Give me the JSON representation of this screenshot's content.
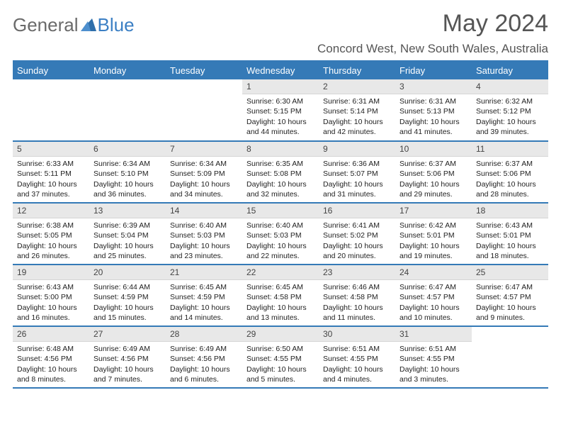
{
  "brand": {
    "part1": "General",
    "part2": "Blue"
  },
  "title": "May 2024",
  "location": "Concord West, New South Wales, Australia",
  "colors": {
    "header_bg": "#357ab7",
    "header_text": "#ffffff",
    "daynum_bg": "#e8e8e8",
    "text": "#222222",
    "title": "#555555",
    "logo_gray": "#6a6a6a",
    "logo_blue": "#3b7fc4"
  },
  "weekdays": [
    "Sunday",
    "Monday",
    "Tuesday",
    "Wednesday",
    "Thursday",
    "Friday",
    "Saturday"
  ],
  "weeks": [
    [
      {
        "n": "",
        "sr": "",
        "ss": "",
        "dl": ""
      },
      {
        "n": "",
        "sr": "",
        "ss": "",
        "dl": ""
      },
      {
        "n": "",
        "sr": "",
        "ss": "",
        "dl": ""
      },
      {
        "n": "1",
        "sr": "Sunrise: 6:30 AM",
        "ss": "Sunset: 5:15 PM",
        "dl": "Daylight: 10 hours and 44 minutes."
      },
      {
        "n": "2",
        "sr": "Sunrise: 6:31 AM",
        "ss": "Sunset: 5:14 PM",
        "dl": "Daylight: 10 hours and 42 minutes."
      },
      {
        "n": "3",
        "sr": "Sunrise: 6:31 AM",
        "ss": "Sunset: 5:13 PM",
        "dl": "Daylight: 10 hours and 41 minutes."
      },
      {
        "n": "4",
        "sr": "Sunrise: 6:32 AM",
        "ss": "Sunset: 5:12 PM",
        "dl": "Daylight: 10 hours and 39 minutes."
      }
    ],
    [
      {
        "n": "5",
        "sr": "Sunrise: 6:33 AM",
        "ss": "Sunset: 5:11 PM",
        "dl": "Daylight: 10 hours and 37 minutes."
      },
      {
        "n": "6",
        "sr": "Sunrise: 6:34 AM",
        "ss": "Sunset: 5:10 PM",
        "dl": "Daylight: 10 hours and 36 minutes."
      },
      {
        "n": "7",
        "sr": "Sunrise: 6:34 AM",
        "ss": "Sunset: 5:09 PM",
        "dl": "Daylight: 10 hours and 34 minutes."
      },
      {
        "n": "8",
        "sr": "Sunrise: 6:35 AM",
        "ss": "Sunset: 5:08 PM",
        "dl": "Daylight: 10 hours and 32 minutes."
      },
      {
        "n": "9",
        "sr": "Sunrise: 6:36 AM",
        "ss": "Sunset: 5:07 PM",
        "dl": "Daylight: 10 hours and 31 minutes."
      },
      {
        "n": "10",
        "sr": "Sunrise: 6:37 AM",
        "ss": "Sunset: 5:06 PM",
        "dl": "Daylight: 10 hours and 29 minutes."
      },
      {
        "n": "11",
        "sr": "Sunrise: 6:37 AM",
        "ss": "Sunset: 5:06 PM",
        "dl": "Daylight: 10 hours and 28 minutes."
      }
    ],
    [
      {
        "n": "12",
        "sr": "Sunrise: 6:38 AM",
        "ss": "Sunset: 5:05 PM",
        "dl": "Daylight: 10 hours and 26 minutes."
      },
      {
        "n": "13",
        "sr": "Sunrise: 6:39 AM",
        "ss": "Sunset: 5:04 PM",
        "dl": "Daylight: 10 hours and 25 minutes."
      },
      {
        "n": "14",
        "sr": "Sunrise: 6:40 AM",
        "ss": "Sunset: 5:03 PM",
        "dl": "Daylight: 10 hours and 23 minutes."
      },
      {
        "n": "15",
        "sr": "Sunrise: 6:40 AM",
        "ss": "Sunset: 5:03 PM",
        "dl": "Daylight: 10 hours and 22 minutes."
      },
      {
        "n": "16",
        "sr": "Sunrise: 6:41 AM",
        "ss": "Sunset: 5:02 PM",
        "dl": "Daylight: 10 hours and 20 minutes."
      },
      {
        "n": "17",
        "sr": "Sunrise: 6:42 AM",
        "ss": "Sunset: 5:01 PM",
        "dl": "Daylight: 10 hours and 19 minutes."
      },
      {
        "n": "18",
        "sr": "Sunrise: 6:43 AM",
        "ss": "Sunset: 5:01 PM",
        "dl": "Daylight: 10 hours and 18 minutes."
      }
    ],
    [
      {
        "n": "19",
        "sr": "Sunrise: 6:43 AM",
        "ss": "Sunset: 5:00 PM",
        "dl": "Daylight: 10 hours and 16 minutes."
      },
      {
        "n": "20",
        "sr": "Sunrise: 6:44 AM",
        "ss": "Sunset: 4:59 PM",
        "dl": "Daylight: 10 hours and 15 minutes."
      },
      {
        "n": "21",
        "sr": "Sunrise: 6:45 AM",
        "ss": "Sunset: 4:59 PM",
        "dl": "Daylight: 10 hours and 14 minutes."
      },
      {
        "n": "22",
        "sr": "Sunrise: 6:45 AM",
        "ss": "Sunset: 4:58 PM",
        "dl": "Daylight: 10 hours and 13 minutes."
      },
      {
        "n": "23",
        "sr": "Sunrise: 6:46 AM",
        "ss": "Sunset: 4:58 PM",
        "dl": "Daylight: 10 hours and 11 minutes."
      },
      {
        "n": "24",
        "sr": "Sunrise: 6:47 AM",
        "ss": "Sunset: 4:57 PM",
        "dl": "Daylight: 10 hours and 10 minutes."
      },
      {
        "n": "25",
        "sr": "Sunrise: 6:47 AM",
        "ss": "Sunset: 4:57 PM",
        "dl": "Daylight: 10 hours and 9 minutes."
      }
    ],
    [
      {
        "n": "26",
        "sr": "Sunrise: 6:48 AM",
        "ss": "Sunset: 4:56 PM",
        "dl": "Daylight: 10 hours and 8 minutes."
      },
      {
        "n": "27",
        "sr": "Sunrise: 6:49 AM",
        "ss": "Sunset: 4:56 PM",
        "dl": "Daylight: 10 hours and 7 minutes."
      },
      {
        "n": "28",
        "sr": "Sunrise: 6:49 AM",
        "ss": "Sunset: 4:56 PM",
        "dl": "Daylight: 10 hours and 6 minutes."
      },
      {
        "n": "29",
        "sr": "Sunrise: 6:50 AM",
        "ss": "Sunset: 4:55 PM",
        "dl": "Daylight: 10 hours and 5 minutes."
      },
      {
        "n": "30",
        "sr": "Sunrise: 6:51 AM",
        "ss": "Sunset: 4:55 PM",
        "dl": "Daylight: 10 hours and 4 minutes."
      },
      {
        "n": "31",
        "sr": "Sunrise: 6:51 AM",
        "ss": "Sunset: 4:55 PM",
        "dl": "Daylight: 10 hours and 3 minutes."
      },
      {
        "n": "",
        "sr": "",
        "ss": "",
        "dl": ""
      }
    ]
  ]
}
